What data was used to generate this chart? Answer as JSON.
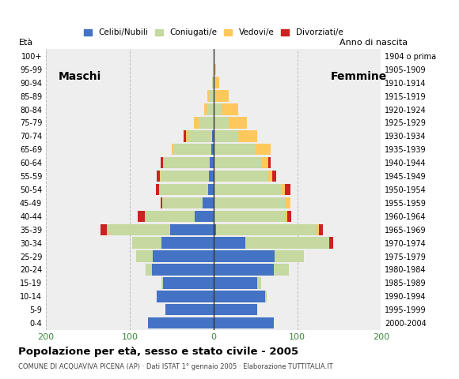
{
  "age_groups": [
    "0-4",
    "5-9",
    "10-14",
    "15-19",
    "20-24",
    "25-29",
    "30-34",
    "35-39",
    "40-44",
    "45-49",
    "50-54",
    "55-59",
    "60-64",
    "65-69",
    "70-74",
    "75-79",
    "80-84",
    "85-89",
    "90-94",
    "95-99",
    "100+"
  ],
  "birth_years": [
    "2000-2004",
    "1995-1999",
    "1990-1994",
    "1985-1989",
    "1980-1984",
    "1975-1979",
    "1970-1974",
    "1965-1969",
    "1960-1964",
    "1955-1959",
    "1950-1954",
    "1945-1949",
    "1940-1944",
    "1935-1939",
    "1930-1934",
    "1925-1929",
    "1920-1924",
    "1915-1919",
    "1910-1914",
    "1905-1909",
    "1904 o prima"
  ],
  "males": {
    "celibe": [
      78,
      57,
      68,
      60,
      73,
      72,
      62,
      52,
      22,
      13,
      6,
      5,
      4,
      3,
      2,
      0,
      0,
      0,
      0,
      0,
      0
    ],
    "coniugato": [
      0,
      0,
      0,
      2,
      8,
      20,
      35,
      75,
      60,
      48,
      58,
      58,
      55,
      45,
      28,
      18,
      8,
      5,
      2,
      0,
      0
    ],
    "vedovo": [
      0,
      0,
      0,
      0,
      0,
      0,
      0,
      0,
      0,
      0,
      1,
      1,
      1,
      2,
      3,
      5,
      3,
      2,
      0,
      0,
      0
    ],
    "divorziato": [
      0,
      0,
      0,
      0,
      0,
      0,
      0,
      8,
      8,
      2,
      4,
      4,
      3,
      0,
      3,
      0,
      0,
      0,
      0,
      0,
      0
    ]
  },
  "females": {
    "nubile": [
      72,
      52,
      62,
      52,
      72,
      73,
      38,
      3,
      0,
      0,
      0,
      0,
      0,
      0,
      0,
      0,
      0,
      0,
      0,
      0,
      0
    ],
    "coniugata": [
      0,
      0,
      2,
      5,
      18,
      35,
      100,
      120,
      85,
      85,
      82,
      65,
      57,
      50,
      30,
      18,
      10,
      3,
      2,
      0,
      0
    ],
    "vedova": [
      0,
      0,
      0,
      0,
      0,
      0,
      0,
      3,
      3,
      7,
      3,
      5,
      8,
      18,
      22,
      22,
      20,
      15,
      5,
      3,
      0
    ],
    "divorziata": [
      0,
      0,
      0,
      0,
      0,
      0,
      5,
      5,
      5,
      0,
      7,
      5,
      3,
      0,
      0,
      0,
      0,
      0,
      0,
      0,
      0
    ]
  },
  "colors": {
    "celibe": "#4472c4",
    "coniugato": "#c5d9a0",
    "vedovo": "#ffc85c",
    "divorziato": "#cc2222"
  },
  "xlim": [
    -200,
    200
  ],
  "xticks": [
    -200,
    -100,
    0,
    100,
    200
  ],
  "xticklabels": [
    "200",
    "100",
    "0",
    "100",
    "200"
  ],
  "title": "Popolazione per età, sesso e stato civile - 2005",
  "subtitle": "COMUNE DI ACQUAVIVA PICENA (AP) · Dati ISTAT 1° gennaio 2005 · Elaborazione TUTTITALIA.IT",
  "ylabel_left": "Età",
  "ylabel_right": "Anno di nascita",
  "legend_labels": [
    "Celibi/Nubili",
    "Coniugati/e",
    "Vedovi/e",
    "Divorziati/e"
  ],
  "label_maschi": "Maschi",
  "label_femmine": "Femmine",
  "bg_color": "#ffffff",
  "plot_bg_color": "#eeeeee"
}
